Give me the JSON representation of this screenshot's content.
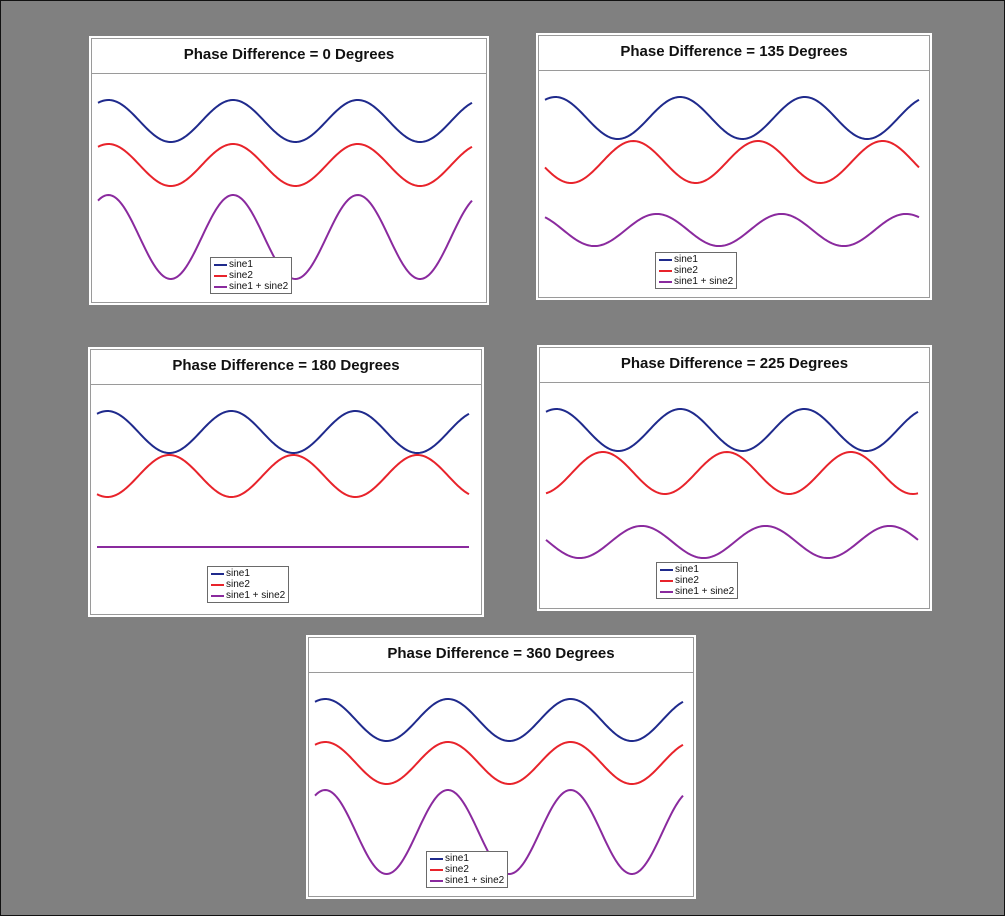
{
  "colors": {
    "sine1": "#1f2a8c",
    "sine2": "#e8232b",
    "sum": "#8a2a9e",
    "background": "#808080"
  },
  "chart_data": [
    {
      "type": "line",
      "title": "Phase Difference = 0 Degrees",
      "phase_deg": 0,
      "x_range_deg": [
        0,
        1080
      ],
      "series": [
        {
          "name": "sine1",
          "amplitude": 1,
          "phase_deg": 0
        },
        {
          "name": "sine2",
          "amplitude": 1,
          "phase_deg": 0
        },
        {
          "name": "sine1 + sine2",
          "amplitude": 2,
          "phase_deg": 0
        }
      ],
      "legend": "bottom-center",
      "grid": false
    },
    {
      "type": "line",
      "title": "Phase Difference = 135 Degrees",
      "phase_deg": 135,
      "x_range_deg": [
        0,
        1080
      ],
      "series": [
        {
          "name": "sine1",
          "amplitude": 1,
          "phase_deg": 0
        },
        {
          "name": "sine2",
          "amplitude": 1,
          "phase_deg": 135
        },
        {
          "name": "sine1 + sine2",
          "amplitude": 0.765,
          "phase_deg": 67.5
        }
      ],
      "legend": "bottom-center",
      "grid": false
    },
    {
      "type": "line",
      "title": "Phase Difference = 180 Degrees",
      "phase_deg": 180,
      "x_range_deg": [
        0,
        1080
      ],
      "series": [
        {
          "name": "sine1",
          "amplitude": 1,
          "phase_deg": 0
        },
        {
          "name": "sine2",
          "amplitude": 1,
          "phase_deg": 180
        },
        {
          "name": "sine1 + sine2",
          "amplitude": 0,
          "phase_deg": 0
        }
      ],
      "legend": "bottom-center",
      "grid": false
    },
    {
      "type": "line",
      "title": "Phase Difference = 225 Degrees",
      "phase_deg": 225,
      "x_range_deg": [
        0,
        1080
      ],
      "series": [
        {
          "name": "sine1",
          "amplitude": 1,
          "phase_deg": 0
        },
        {
          "name": "sine2",
          "amplitude": 1,
          "phase_deg": 225
        },
        {
          "name": "sine1 + sine2",
          "amplitude": 0.765,
          "phase_deg": 112.5
        }
      ],
      "legend": "bottom-center",
      "grid": false
    },
    {
      "type": "line",
      "title": "Phase Difference = 360 Degrees",
      "phase_deg": 360,
      "x_range_deg": [
        0,
        1080
      ],
      "series": [
        {
          "name": "sine1",
          "amplitude": 1,
          "phase_deg": 0
        },
        {
          "name": "sine2",
          "amplitude": 1,
          "phase_deg": 360
        },
        {
          "name": "sine1 + sine2",
          "amplitude": 2,
          "phase_deg": 0
        }
      ],
      "legend": "bottom-center",
      "grid": false
    }
  ]
}
